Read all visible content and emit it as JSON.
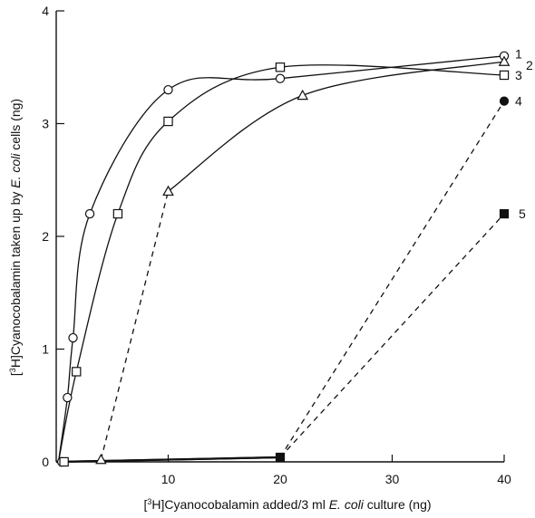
{
  "chart_data": {
    "type": "line",
    "title": "",
    "xlabel_parts": [
      {
        "text": "[",
        "style": "normal"
      },
      {
        "text": "3",
        "style": "sup"
      },
      {
        "text": "H]Cyanocobalamin added/3 ml ",
        "style": "normal"
      },
      {
        "text": "E. coli",
        "style": "italic"
      },
      {
        "text": " culture (ng)",
        "style": "normal"
      }
    ],
    "ylabel_parts": [
      {
        "text": "[",
        "style": "normal"
      },
      {
        "text": "3",
        "style": "sup"
      },
      {
        "text": "H]Cyanocobalamin taken up by ",
        "style": "normal"
      },
      {
        "text": "E. coli",
        "style": "italic"
      },
      {
        "text": " cells (ng)",
        "style": "normal"
      }
    ],
    "xlim": [
      0,
      40
    ],
    "ylim": [
      0,
      4
    ],
    "x_ticks": [
      {
        "value": 10,
        "label": "10"
      },
      {
        "value": 20,
        "label": "20"
      },
      {
        "value": 30,
        "label": "30"
      },
      {
        "value": 40,
        "label": "40"
      }
    ],
    "y_ticks": [
      {
        "value": 0,
        "label": "0"
      },
      {
        "value": 1,
        "label": "1"
      },
      {
        "value": 2,
        "label": "2"
      },
      {
        "value": 3,
        "label": "3"
      },
      {
        "value": 4,
        "label": "4"
      }
    ],
    "grid": false,
    "series": [
      {
        "label": "1",
        "marker": "open-circle",
        "line": "solid-curve",
        "x": [
          0.5,
          1,
          1.5,
          3,
          10,
          20,
          40
        ],
        "y": [
          0,
          0.57,
          1.1,
          2.2,
          3.3,
          3.4,
          3.6
        ]
      },
      {
        "label": "2",
        "marker": "open-triangle",
        "line": "mixed",
        "x": [
          4,
          10,
          22,
          40
        ],
        "y": [
          0.02,
          2.4,
          3.25,
          3.55
        ]
      },
      {
        "label": "3",
        "marker": "open-square",
        "line": "solid-curve",
        "x": [
          0.7,
          1.8,
          5.5,
          10,
          20,
          40
        ],
        "y": [
          0,
          0.8,
          2.2,
          3.02,
          3.5,
          3.43
        ]
      },
      {
        "label": "4",
        "marker": "filled-circle",
        "line": "mixed",
        "x": [
          0,
          20,
          40
        ],
        "y": [
          0,
          0.04,
          3.2
        ]
      },
      {
        "label": "5",
        "marker": "filled-square",
        "line": "mixed",
        "x": [
          0,
          20,
          40
        ],
        "y": [
          0,
          0.04,
          2.2
        ]
      }
    ]
  }
}
